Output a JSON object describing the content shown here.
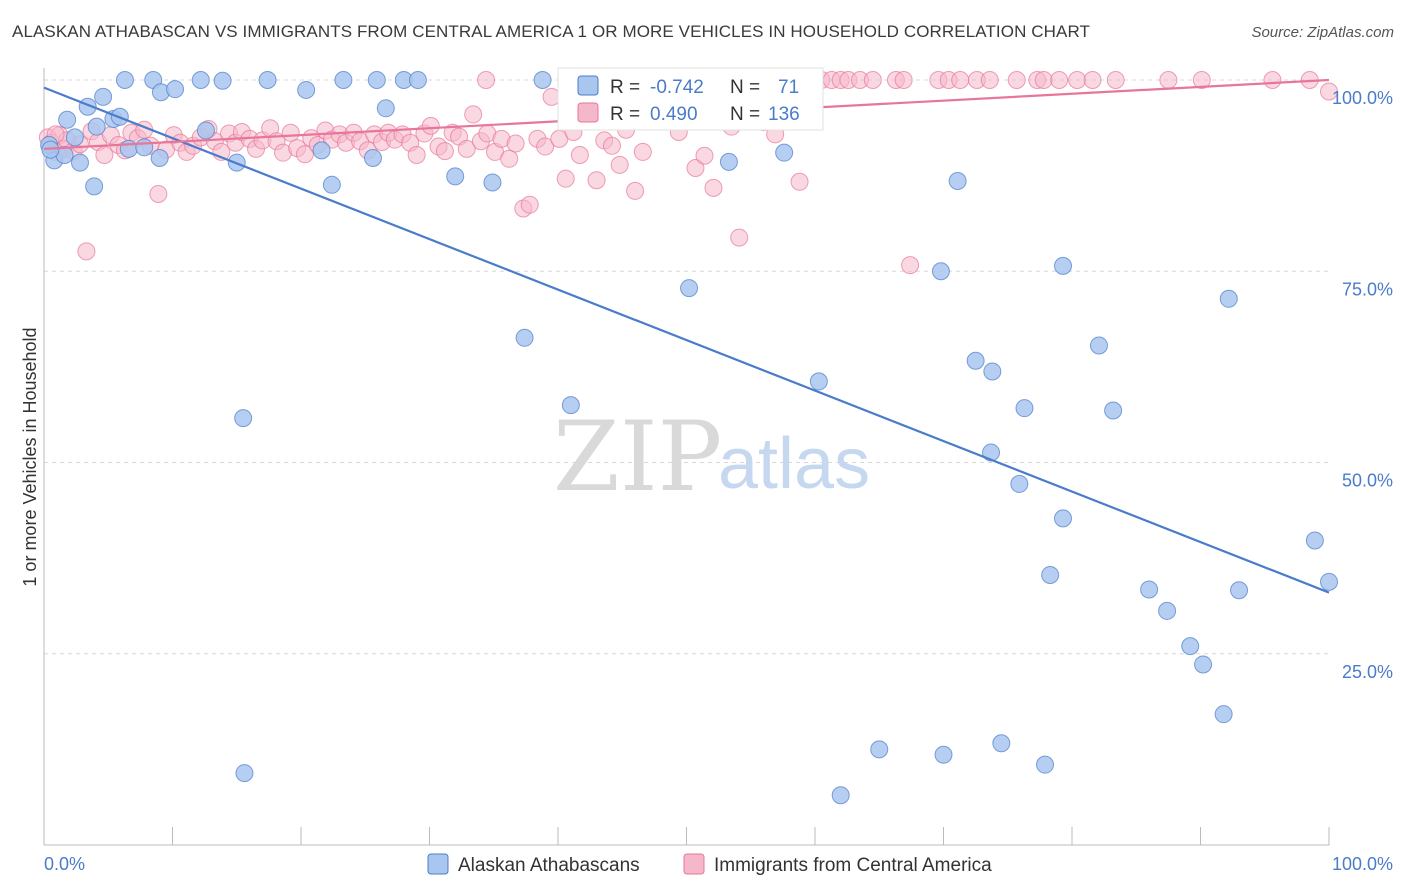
{
  "header": {
    "title": "ALASKAN ATHABASCAN VS IMMIGRANTS FROM CENTRAL AMERICA 1 OR MORE VEHICLES IN HOUSEHOLD CORRELATION CHART",
    "source": "Source: ZipAtlas.com"
  },
  "colors": {
    "blue": "#4a7cc9",
    "blue_fill": "#a9c6ee",
    "pink": "#e8769a",
    "pink_fill": "#f5b8cb",
    "grid": "#d8d8d8",
    "axis_text": "#4a7cc9"
  },
  "legend_box": {
    "r_label": "R =",
    "n_label": "N =",
    "series1": {
      "r": "-0.742",
      "n": "71"
    },
    "series2": {
      "r": "0.490",
      "n": "136"
    }
  },
  "watermark": {
    "zip": "ZIP",
    "atlas": "atlas"
  },
  "chart_data": {
    "type": "scatter",
    "title": "ALASKAN ATHABASCAN VS IMMIGRANTS FROM CENTRAL AMERICA 1 OR MORE VEHICLES IN HOUSEHOLD CORRELATION CHART",
    "xlabel": "",
    "ylabel": "1 or more Vehicles in Household",
    "xlim": [
      0,
      100
    ],
    "ylim": [
      0,
      100
    ],
    "x_ticks": [
      "0.0%",
      "100.0%"
    ],
    "y_ticks": [
      {
        "value": 100,
        "label": "100.0%"
      },
      {
        "value": 75,
        "label": "75.0%"
      },
      {
        "value": 50,
        "label": "50.0%"
      },
      {
        "value": 25,
        "label": "25.0%"
      }
    ],
    "grid": true,
    "legend_position": "bottom",
    "series": [
      {
        "name": "Alaskan Athabascans",
        "color": "#4a7cc9",
        "trend": [
          [
            0,
            99.0
          ],
          [
            100,
            33.0
          ]
        ],
        "points": [
          [
            0.4,
            91.5
          ],
          [
            0.8,
            89.5
          ],
          [
            1.6,
            90.2
          ],
          [
            1.8,
            94.8
          ],
          [
            2.4,
            92.5
          ],
          [
            2.8,
            89.2
          ],
          [
            3.4,
            96.5
          ],
          [
            3.9,
            86.1
          ],
          [
            4.1,
            93.9
          ],
          [
            4.6,
            97.8
          ],
          [
            5.4,
            94.9
          ],
          [
            5.9,
            95.2
          ],
          [
            6.3,
            100
          ],
          [
            6.6,
            91.0
          ],
          [
            7.8,
            91.2
          ],
          [
            8.5,
            100
          ],
          [
            9.0,
            89.8
          ],
          [
            9.1,
            98.4
          ],
          [
            10.2,
            98.8
          ],
          [
            12.2,
            100
          ],
          [
            12.6,
            93.4
          ],
          [
            13.9,
            99.9
          ],
          [
            15.0,
            89.2
          ],
          [
            15.5,
            55.8
          ],
          [
            15.6,
            9.4
          ],
          [
            17.4,
            100
          ],
          [
            20.4,
            98.7
          ],
          [
            21.6,
            90.8
          ],
          [
            22.4,
            86.3
          ],
          [
            23.3,
            100
          ],
          [
            25.6,
            89.8
          ],
          [
            25.9,
            100
          ],
          [
            26.6,
            96.3
          ],
          [
            28.0,
            100
          ],
          [
            29.1,
            100
          ],
          [
            32.0,
            87.4
          ],
          [
            34.9,
            86.6
          ],
          [
            37.4,
            66.3
          ],
          [
            38.8,
            100
          ],
          [
            41.0,
            57.5
          ],
          [
            50.2,
            72.8
          ],
          [
            53.3,
            89.3
          ],
          [
            57.6,
            90.5
          ],
          [
            60.3,
            60.6
          ],
          [
            62.0,
            6.5
          ],
          [
            65.0,
            12.5
          ],
          [
            69.8,
            75.0
          ],
          [
            70.0,
            11.8
          ],
          [
            71.1,
            86.8
          ],
          [
            72.5,
            63.3
          ],
          [
            73.7,
            51.3
          ],
          [
            73.8,
            61.9
          ],
          [
            74.5,
            13.3
          ],
          [
            75.9,
            47.2
          ],
          [
            76.3,
            57.1
          ],
          [
            77.9,
            10.5
          ],
          [
            78.3,
            35.3
          ],
          [
            79.3,
            42.7
          ],
          [
            79.3,
            75.7
          ],
          [
            82.1,
            65.3
          ],
          [
            83.2,
            56.8
          ],
          [
            86.0,
            33.4
          ],
          [
            87.4,
            30.6
          ],
          [
            89.2,
            26.0
          ],
          [
            90.2,
            23.6
          ],
          [
            91.8,
            17.1
          ],
          [
            92.2,
            71.4
          ],
          [
            93.0,
            33.3
          ],
          [
            98.9,
            39.8
          ],
          [
            100.0,
            34.4
          ],
          [
            0.5,
            90.9
          ]
        ]
      },
      {
        "name": "Immigrants from Central America",
        "color": "#e8769a",
        "trend": [
          [
            0,
            91.0
          ],
          [
            100,
            100.0
          ]
        ],
        "points": [
          [
            0.3,
            92.5
          ],
          [
            0.6,
            91.8
          ],
          [
            0.9,
            90.6
          ],
          [
            1.2,
            92.8
          ],
          [
            1.5,
            91.0
          ],
          [
            1.8,
            92.1
          ],
          [
            2.3,
            90.7
          ],
          [
            2.8,
            91.6
          ],
          [
            3.3,
            77.6
          ],
          [
            3.7,
            93.3
          ],
          [
            4.2,
            91.9
          ],
          [
            4.7,
            90.2
          ],
          [
            5.2,
            92.8
          ],
          [
            5.8,
            91.5
          ],
          [
            6.3,
            90.8
          ],
          [
            6.8,
            93.1
          ],
          [
            7.3,
            92.4
          ],
          [
            7.8,
            93.5
          ],
          [
            8.3,
            91.4
          ],
          [
            8.9,
            85.1
          ],
          [
            9.5,
            90.9
          ],
          [
            10.1,
            92.8
          ],
          [
            10.6,
            91.8
          ],
          [
            11.1,
            90.6
          ],
          [
            11.6,
            91.4
          ],
          [
            12.2,
            92.5
          ],
          [
            12.8,
            93.6
          ],
          [
            13.3,
            92.0
          ],
          [
            13.8,
            90.6
          ],
          [
            14.4,
            93.0
          ],
          [
            14.9,
            91.8
          ],
          [
            15.4,
            93.2
          ],
          [
            16.0,
            92.3
          ],
          [
            16.5,
            91.0
          ],
          [
            17.0,
            92.1
          ],
          [
            17.6,
            93.7
          ],
          [
            18.1,
            92.0
          ],
          [
            18.6,
            90.5
          ],
          [
            19.2,
            93.1
          ],
          [
            19.7,
            91.1
          ],
          [
            20.3,
            90.3
          ],
          [
            20.8,
            92.4
          ],
          [
            21.3,
            91.5
          ],
          [
            21.9,
            93.4
          ],
          [
            22.4,
            92.2
          ],
          [
            23.0,
            92.9
          ],
          [
            23.5,
            91.8
          ],
          [
            24.1,
            93.1
          ],
          [
            24.6,
            92.0
          ],
          [
            25.2,
            90.8
          ],
          [
            25.7,
            92.9
          ],
          [
            26.3,
            91.9
          ],
          [
            26.8,
            93.1
          ],
          [
            27.3,
            92.2
          ],
          [
            27.9,
            92.9
          ],
          [
            28.5,
            91.8
          ],
          [
            29.0,
            90.2
          ],
          [
            29.6,
            93.0
          ],
          [
            30.1,
            94.0
          ],
          [
            30.7,
            91.3
          ],
          [
            31.2,
            90.7
          ],
          [
            31.8,
            93.1
          ],
          [
            32.3,
            92.6
          ],
          [
            32.9,
            91.0
          ],
          [
            33.4,
            95.5
          ],
          [
            34.0,
            92.0
          ],
          [
            34.5,
            93.0
          ],
          [
            35.1,
            90.6
          ],
          [
            35.6,
            92.3
          ],
          [
            36.2,
            89.7
          ],
          [
            36.7,
            91.7
          ],
          [
            37.3,
            83.2
          ],
          [
            37.8,
            83.7
          ],
          [
            38.4,
            92.3
          ],
          [
            39.0,
            91.3
          ],
          [
            39.5,
            97.8
          ],
          [
            40.1,
            92.3
          ],
          [
            40.6,
            87.1
          ],
          [
            41.2,
            93.2
          ],
          [
            41.7,
            90.2
          ],
          [
            42.2,
            100
          ],
          [
            43.0,
            86.9
          ],
          [
            43.6,
            92.1
          ],
          [
            44.2,
            91.4
          ],
          [
            44.8,
            88.9
          ],
          [
            45.3,
            93.5
          ],
          [
            46.0,
            85.5
          ],
          [
            46.6,
            90.6
          ],
          [
            47.4,
            100
          ],
          [
            48.6,
            100
          ],
          [
            49.4,
            93.2
          ],
          [
            50.0,
            100
          ],
          [
            50.7,
            88.5
          ],
          [
            51.4,
            90.1
          ],
          [
            52.1,
            85.9
          ],
          [
            52.8,
            100
          ],
          [
            53.5,
            93.9
          ],
          [
            54.1,
            79.4
          ],
          [
            55.1,
            100
          ],
          [
            56.0,
            94.5
          ],
          [
            56.9,
            92.9
          ],
          [
            57.9,
            100
          ],
          [
            58.8,
            86.7
          ],
          [
            59.6,
            98.4
          ],
          [
            60.5,
            100
          ],
          [
            61.3,
            100
          ],
          [
            62.0,
            100
          ],
          [
            62.6,
            100
          ],
          [
            63.5,
            100
          ],
          [
            64.5,
            100
          ],
          [
            66.3,
            100
          ],
          [
            66.9,
            100
          ],
          [
            67.4,
            75.8
          ],
          [
            69.6,
            100
          ],
          [
            70.4,
            100
          ],
          [
            71.3,
            100
          ],
          [
            72.6,
            100
          ],
          [
            73.6,
            100
          ],
          [
            75.7,
            100
          ],
          [
            77.3,
            100
          ],
          [
            77.8,
            100
          ],
          [
            79.0,
            100
          ],
          [
            80.4,
            100
          ],
          [
            81.6,
            100
          ],
          [
            83.4,
            100
          ],
          [
            87.5,
            100
          ],
          [
            90.1,
            100
          ],
          [
            95.6,
            100
          ],
          [
            98.5,
            100
          ],
          [
            100.0,
            98.5
          ],
          [
            34.4,
            100
          ],
          [
            0.9,
            92.9
          ]
        ]
      }
    ]
  }
}
